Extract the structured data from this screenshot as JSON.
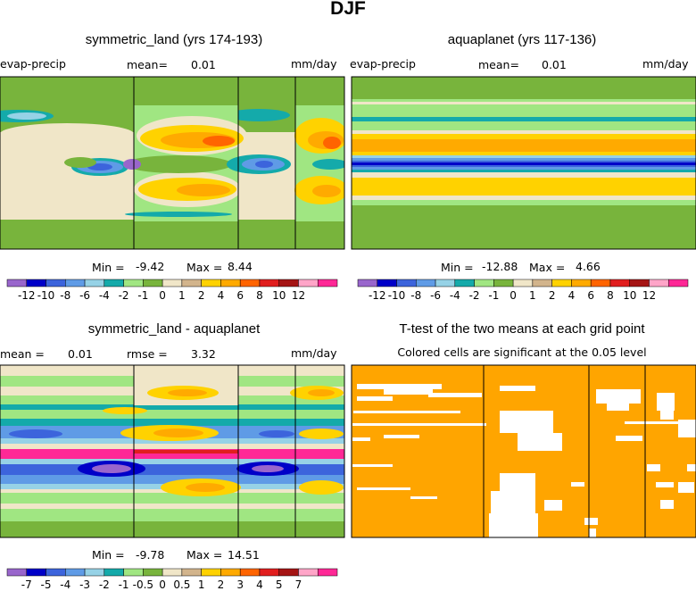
{
  "figure": {
    "title": "DJF"
  },
  "panels": [
    {
      "title": "symmetric_land (yrs 174-193)",
      "var_label": "evap-precip",
      "stat_label": "mean=",
      "stat_value": "0.01",
      "units": "mm/day",
      "min_label": "Min =",
      "min_value": "-9.42",
      "max_label": "Max =",
      "max_value": "8.44"
    },
    {
      "title": "aquaplanet (yrs 117-136)",
      "var_label": "evap-precip",
      "stat_label": "mean=",
      "stat_value": "0.01",
      "units": "mm/day",
      "min_label": "Min =",
      "min_value": "-12.88",
      "max_label": "Max =",
      "max_value": "4.66"
    },
    {
      "title": "symmetric_land - aquaplanet",
      "stat_label": "mean =",
      "stat_value": "0.01",
      "stat2_label": "rmse =",
      "stat2_value": "3.32",
      "units": "mm/day",
      "min_label": "Min =",
      "min_value": "-9.78",
      "max_label": "Max =",
      "max_value": "14.51"
    },
    {
      "title": "T-test of the two means at each grid point",
      "subtitle": "Colored cells are significant at the 0.05 level"
    }
  ],
  "colorbars": {
    "abs": [
      "-12",
      "-10",
      "-8",
      "-6",
      "-4",
      "-2",
      "-1",
      "0",
      "1",
      "2",
      "4",
      "6",
      "8",
      "10",
      "12"
    ],
    "diff": [
      "-7",
      "-5",
      "-4",
      "-3",
      "-2",
      "-1",
      "-0.5",
      "0",
      "0.5",
      "1",
      "2",
      "3",
      "4",
      "5",
      "7"
    ]
  },
  "colors": {
    "palette": [
      "#9966cc",
      "#0000c8",
      "#3c64dc",
      "#5f9be6",
      "#96d2e6",
      "#14aaaa",
      "#a0e682",
      "#78b43c",
      "#f0e6c8",
      "#d2b48c",
      "#ffd200",
      "#ffaa00",
      "#ff6400",
      "#e11e1e",
      "#a51414",
      "#ffa5c8",
      "#ff2896"
    ],
    "ttest": "#ffa500",
    "frame": "#000000"
  },
  "chart_data": [
    {
      "type": "heatmap",
      "title": "symmetric_land (yrs 174-193)",
      "variable": "evap-precip",
      "units": "mm/day",
      "mean": 0.01,
      "min": -9.42,
      "max": 8.44,
      "levels": [
        -12,
        -10,
        -8,
        -6,
        -4,
        -2,
        -1,
        0,
        1,
        2,
        4,
        6,
        8,
        10,
        12
      ],
      "note": "zonal bands: subtropical evaporation maxima (2 to 8) over ocean sectors; wet ITCZ band (-2 to -9) near equator, interrupted over continental strips"
    },
    {
      "type": "heatmap",
      "title": "aquaplanet (yrs 117-136)",
      "variable": "evap-precip",
      "units": "mm/day",
      "mean": 0.01,
      "min": -12.88,
      "max": 4.66,
      "levels": [
        -12,
        -10,
        -8,
        -6,
        -4,
        -2,
        -1,
        0,
        1,
        2,
        4,
        6,
        8,
        10,
        12
      ],
      "note": "zonally symmetric bands: positive E-P (2 to 4) in subtropics of both hemispheres; strong negative band (to -12.88) along the equator"
    },
    {
      "type": "heatmap",
      "title": "symmetric_land - aquaplanet",
      "units": "mm/day",
      "mean": 0.01,
      "rmse": 3.32,
      "min": -9.78,
      "max": 14.51,
      "levels": [
        -7,
        -5,
        -4,
        -3,
        -2,
        -1,
        -0.5,
        0,
        0.5,
        1,
        2,
        3,
        4,
        5,
        7
      ],
      "note": "large positive difference (>7) at the equator, negative bands (-2 to -7) just north and south of it"
    },
    {
      "type": "heatmap",
      "title": "T-test of the two means at each grid point",
      "subtitle": "Colored cells are significant at the 0.05 level",
      "note": "most grid cells significant (colored); scattered non-significant (white) cells mainly in the northern half and over land sectors"
    }
  ]
}
